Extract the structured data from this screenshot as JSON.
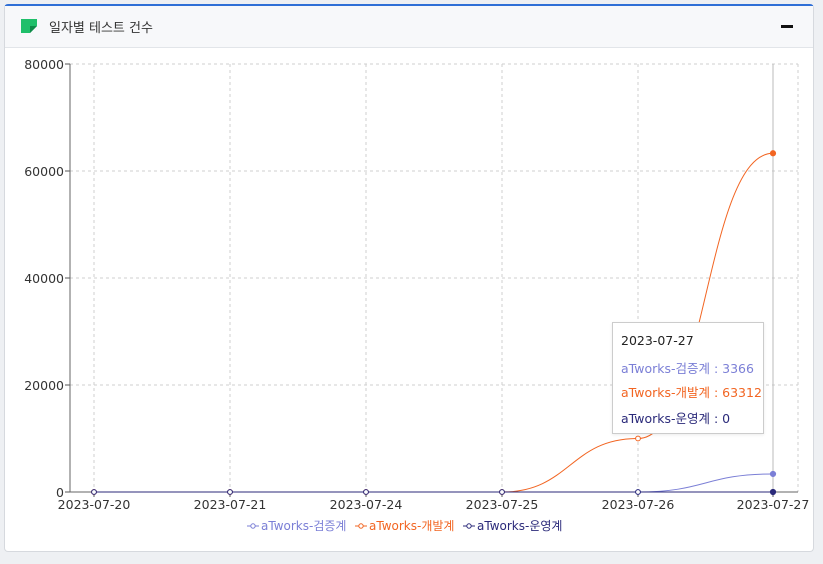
{
  "panel": {
    "title": "일자별 테스트 건수"
  },
  "colors": {
    "series1": "#7b7fd6",
    "series2": "#f26522",
    "series3": "#2b2a7a",
    "grid": "#cfcfcf"
  },
  "chart_data": {
    "type": "line",
    "categories": [
      "2023-07-20",
      "2023-07-21",
      "2023-07-24",
      "2023-07-25",
      "2023-07-26",
      "2023-07-27"
    ],
    "y_ticks": [
      "0",
      "20000",
      "40000",
      "60000",
      "80000"
    ],
    "ylim": [
      0,
      80000
    ],
    "grid": true,
    "legend_position": "bottom",
    "series": [
      {
        "name": "aTworks-검증계",
        "values": [
          0,
          0,
          0,
          0,
          0,
          3366
        ]
      },
      {
        "name": "aTworks-개발계",
        "values": [
          0,
          0,
          0,
          0,
          10000,
          63312
        ]
      },
      {
        "name": "aTworks-운영계",
        "values": [
          0,
          0,
          0,
          0,
          0,
          0
        ]
      }
    ]
  },
  "tooltip": {
    "date": "2023-07-27",
    "rows": [
      {
        "text": "aTworks-검증계 : 3366"
      },
      {
        "text": "aTworks-개발계 : 63312"
      },
      {
        "text": "aTworks-운영계 : 0"
      }
    ]
  }
}
